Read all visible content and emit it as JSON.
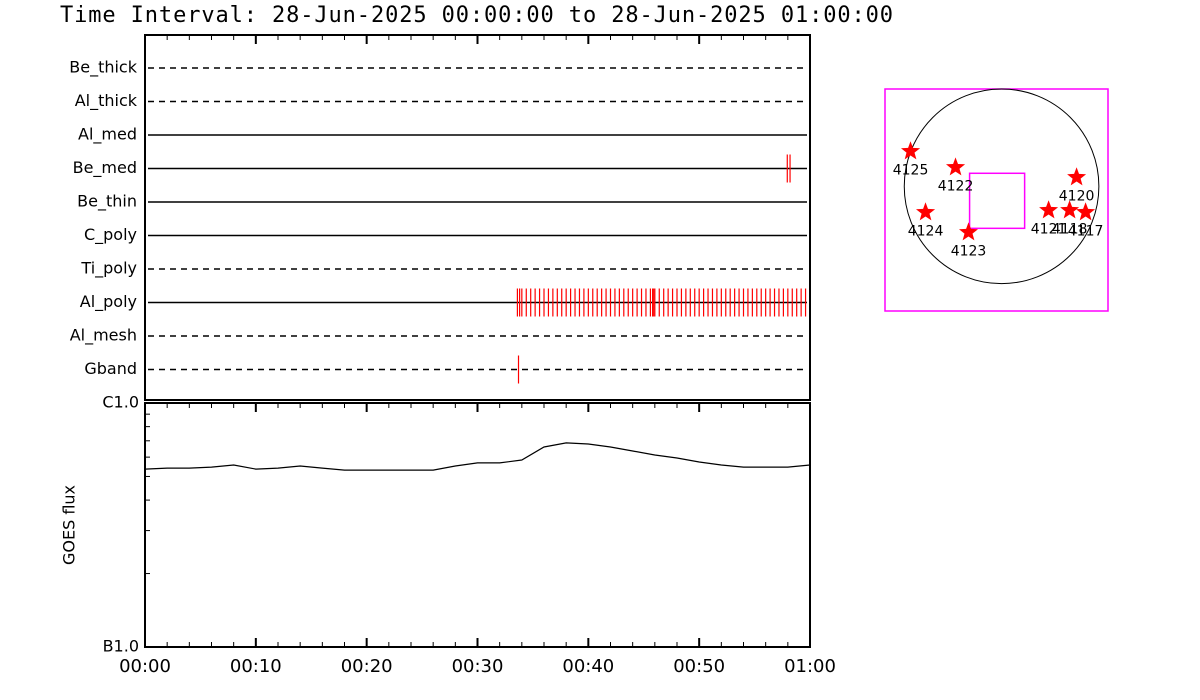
{
  "chart_data": [
    {
      "type": "timeline",
      "title": "Time Interval: 28-Jun-2025 00:00:00 to 28-Jun-2025 01:00:00",
      "xlim": [
        0,
        60
      ],
      "xticks": [
        0,
        10,
        20,
        30,
        40,
        50,
        60
      ],
      "event_color": "#ff0000",
      "rows": [
        {
          "name": "Be_thick",
          "line_style": "dashed",
          "events": []
        },
        {
          "name": "Al_thick",
          "line_style": "dashed",
          "events": []
        },
        {
          "name": "Al_med",
          "line_style": "solid",
          "events": []
        },
        {
          "name": "Be_med",
          "line_style": "solid",
          "events": [
            57.95,
            58.2
          ]
        },
        {
          "name": "Be_thin",
          "line_style": "solid",
          "events": []
        },
        {
          "name": "C_poly",
          "line_style": "solid",
          "events": []
        },
        {
          "name": "Ti_poly",
          "line_style": "dashed",
          "events": []
        },
        {
          "name": "Al_poly",
          "line_style": "solid",
          "events": [
            33.6,
            33.8,
            34.0,
            34.4,
            34.8,
            35.2,
            35.6,
            36.0,
            36.4,
            36.8,
            37.2,
            37.6,
            38.0,
            38.4,
            38.8,
            39.2,
            39.6,
            40.0,
            40.4,
            40.8,
            41.2,
            41.6,
            42.0,
            42.4,
            42.8,
            43.2,
            43.6,
            44.0,
            44.4,
            44.8,
            45.2,
            45.6,
            45.8,
            45.9,
            46.0,
            46.4,
            46.8,
            47.2,
            47.6,
            48.0,
            48.4,
            48.8,
            49.2,
            49.6,
            50.0,
            50.4,
            50.8,
            51.2,
            51.6,
            52.0,
            52.4,
            52.8,
            53.2,
            53.6,
            54.0,
            54.4,
            54.8,
            55.2,
            55.6,
            56.0,
            56.4,
            56.8,
            57.2,
            57.6,
            58.0,
            58.4,
            58.8,
            59.2,
            59.6
          ]
        },
        {
          "name": "Al_mesh",
          "line_style": "dashed",
          "events": []
        },
        {
          "name": "Gband",
          "line_style": "dashed",
          "events": [
            33.7
          ]
        }
      ]
    },
    {
      "type": "line",
      "ylabel": "GOES flux",
      "log_scale": true,
      "color": "#000000",
      "xlim": [
        0,
        60
      ],
      "xticks": [
        {
          "value": 0,
          "label": "00:00"
        },
        {
          "value": 10,
          "label": "00:10"
        },
        {
          "value": 20,
          "label": "00:20"
        },
        {
          "value": 30,
          "label": "00:30"
        },
        {
          "value": 40,
          "label": "00:40"
        },
        {
          "value": 50,
          "label": "00:50"
        },
        {
          "value": 60,
          "label": "01:00"
        }
      ],
      "ylim": [
        1e-07,
        1e-06
      ],
      "yticks": [
        {
          "value": 1e-07,
          "label": "B1.0"
        },
        {
          "value": 1e-06,
          "label": "C1.0"
        }
      ],
      "x": [
        0,
        2,
        4,
        6,
        8,
        10,
        12,
        14,
        16,
        18,
        20,
        22,
        24,
        26,
        28,
        30,
        32,
        34,
        36,
        38,
        40,
        42,
        44,
        46,
        48,
        50,
        52,
        54,
        56,
        58,
        60
      ],
      "values": [
        5.36e-07,
        5.41e-07,
        5.41e-07,
        5.46e-07,
        5.57e-07,
        5.36e-07,
        5.41e-07,
        5.52e-07,
        5.41e-07,
        5.31e-07,
        5.31e-07,
        5.31e-07,
        5.31e-07,
        5.31e-07,
        5.52e-07,
        5.68e-07,
        5.68e-07,
        5.84e-07,
        6.6e-07,
        6.86e-07,
        6.79e-07,
        6.6e-07,
        6.36e-07,
        6.12e-07,
        5.95e-07,
        5.73e-07,
        5.57e-07,
        5.46e-07,
        5.46e-07,
        5.46e-07,
        5.57e-07
      ]
    },
    {
      "type": "scatter",
      "xlim": [
        -1150,
        1050
      ],
      "ylim": [
        -1230,
        960
      ],
      "disk_radius": 960,
      "frame_color": "#ff00ff",
      "marker_color": "#ff0000",
      "fov": {
        "x": -44,
        "y": -143,
        "width": 543
      },
      "labels": [
        "4125",
        "4122",
        "4124",
        "4123",
        "4121",
        "4118",
        "4117",
        "4120"
      ],
      "x": [
        -898,
        -454,
        -750,
        -326,
        464,
        671,
        829,
        740
      ],
      "y": [
        345,
        187,
        -256,
        -454,
        -237,
        -237,
        -256,
        89
      ]
    }
  ]
}
